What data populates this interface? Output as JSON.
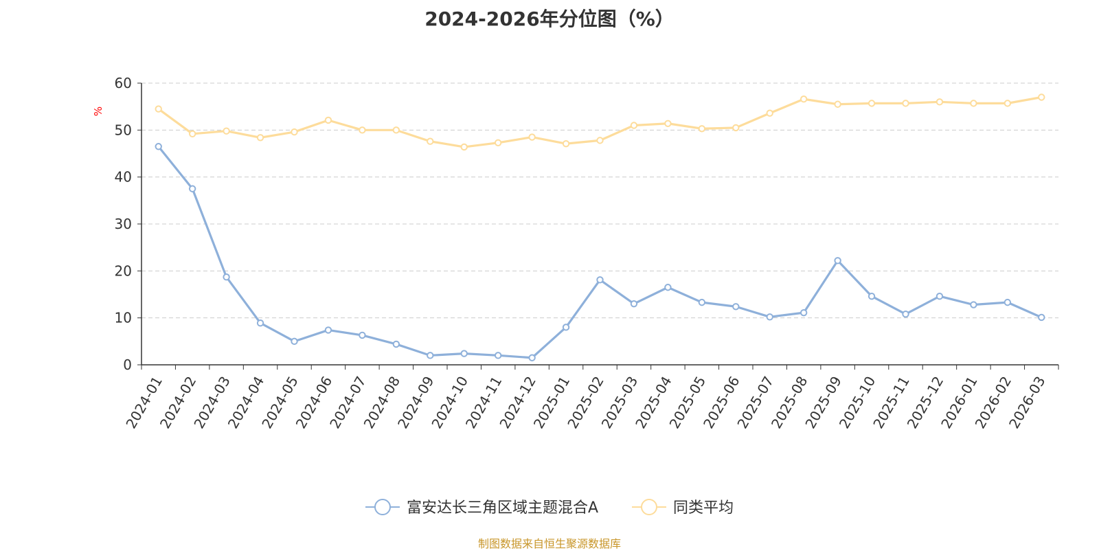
{
  "chart_data": {
    "type": "line",
    "title": "2024-2026年分位图（%）",
    "ylabel": "%",
    "xlabel": "",
    "ylim": [
      0,
      60
    ],
    "yticks": [
      0,
      10,
      20,
      30,
      40,
      50,
      60
    ],
    "grid": true,
    "legend_position": "bottom-center",
    "categories": [
      "2024-01",
      "2024-02",
      "2024-03",
      "2024-04",
      "2024-05",
      "2024-06",
      "2024-07",
      "2024-08",
      "2024-09",
      "2024-10",
      "2024-11",
      "2024-12",
      "2025-01",
      "2025-02",
      "2025-03",
      "2025-04",
      "2025-05",
      "2025-06",
      "2025-07",
      "2025-08",
      "2025-09",
      "2025-10",
      "2025-11",
      "2025-12",
      "2026-01",
      "2026-02",
      "2026-03"
    ],
    "series": [
      {
        "name": "富安达长三角区域主题混合A",
        "color": "#8eb0da",
        "values": [
          46.5,
          37.5,
          18.7,
          8.9,
          5.0,
          7.4,
          6.3,
          4.4,
          2.0,
          2.4,
          2.0,
          1.5,
          8.0,
          18.1,
          13.0,
          16.5,
          13.3,
          12.4,
          10.2,
          11.1,
          22.2,
          14.6,
          10.8,
          14.6,
          12.8,
          13.3,
          10.1
        ]
      },
      {
        "name": "同类平均",
        "color": "#fddc9b",
        "values": [
          54.5,
          49.2,
          49.8,
          48.4,
          49.6,
          52.1,
          50.0,
          50.0,
          47.6,
          46.4,
          47.3,
          48.5,
          47.1,
          47.8,
          51.0,
          51.4,
          50.3,
          50.5,
          53.6,
          56.6,
          55.5,
          55.7,
          55.7,
          56.0,
          55.7,
          55.7,
          57.0
        ]
      }
    ]
  },
  "footer": {
    "credit": "制图数据来自恒生聚源数据库"
  }
}
